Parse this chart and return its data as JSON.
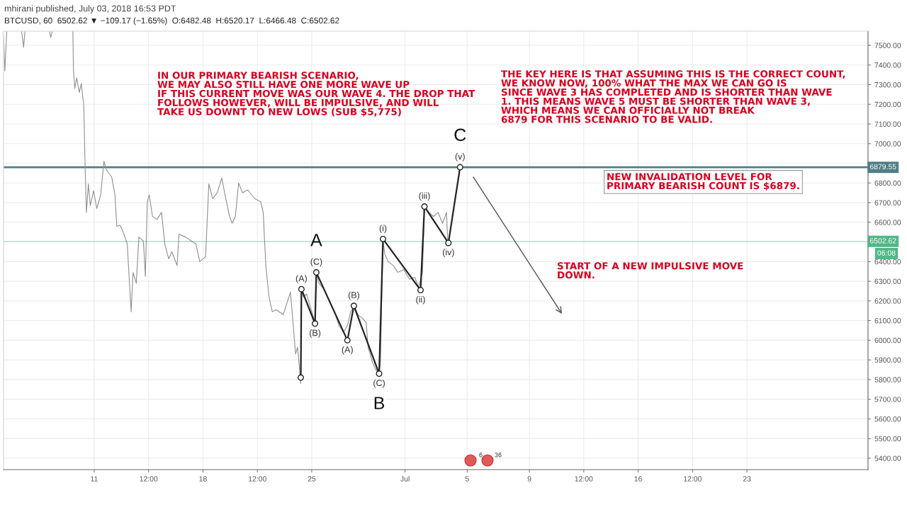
{
  "chart_data": {
    "type": "line",
    "title": "mhirani published, July 03, 2018 16:53 PDT",
    "subtitle": "BTCUSD, 60  6502.62 ▼ −109.17 (−1.65%)  O:6482.48  H:6520.17  L:6466.48  C:6502.62",
    "x": [
      "2018-06-05T04:00",
      "2018-06-05T06:00",
      "2018-06-05T09:00",
      "2018-06-05T20:00",
      "2018-06-06T08:00",
      "2018-06-06T11:00",
      "2018-06-06T13:00",
      "2018-06-07T08:00",
      "2018-06-08T03:00",
      "2018-06-08T05:00",
      "2018-06-08T07:00",
      "2018-06-09T00:00",
      "2018-06-09T15:00",
      "2018-06-09T16:00",
      "2018-06-09T18:00",
      "2018-06-09T21:00",
      "2018-06-10T01:00",
      "2018-06-10T04:00",
      "2018-06-10T08:00",
      "2018-06-10T10:00",
      "2018-06-10T12:00",
      "2018-06-10T15:00",
      "2018-06-10T18:00",
      "2018-06-10T23:00",
      "2018-06-11T04:00",
      "2018-06-11T10:00",
      "2018-06-11T15:00",
      "2018-06-11T19:00",
      "2018-06-12T03:00",
      "2018-06-12T08:00",
      "2018-06-12T11:00",
      "2018-06-12T16:00",
      "2018-06-12T22:00",
      "2018-06-13T03:00",
      "2018-06-13T09:00",
      "2018-06-13T12:00",
      "2018-06-13T17:00",
      "2018-06-13T21:00",
      "2018-06-14T04:00",
      "2018-06-14T07:00",
      "2018-06-14T10:00",
      "2018-06-14T13:00",
      "2018-06-14T18:00",
      "2018-06-15T01:00",
      "2018-06-15T08:00",
      "2018-06-15T13:00",
      "2018-06-15T19:00",
      "2018-06-16T00:00",
      "2018-06-16T08:00",
      "2018-06-16T11:00",
      "2018-06-16T21:00",
      "2018-06-17T06:00",
      "2018-06-17T13:00",
      "2018-06-17T19:00",
      "2018-06-18T04:00",
      "2018-06-18T09:00",
      "2018-06-18T15:00",
      "2018-06-18T22:00",
      "2018-06-19T05:00",
      "2018-06-19T10:00",
      "2018-06-19T17:00",
      "2018-06-19T21:00",
      "2018-06-20T02:00",
      "2018-06-20T07:00",
      "2018-06-20T13:00",
      "2018-06-20T21:00",
      "2018-06-21T08:00",
      "2018-06-21T17:00",
      "2018-06-21T21:00",
      "2018-06-22T01:00",
      "2018-06-22T06:00",
      "2018-06-22T11:00",
      "2018-06-22T17:00",
      "2018-06-23T04:00",
      "2018-06-23T15:00",
      "2018-06-23T18:00",
      "2018-06-23T23:00",
      "2018-06-24T02:00",
      "2018-06-24T06:00",
      "2018-06-24T07:00",
      "2018-06-24T08:00",
      "2018-06-24T11:00",
      "2018-06-24T16:00",
      "2018-06-25T00:00",
      "2018-06-25T05:00",
      "2018-06-25T07:00",
      "2018-06-25T11:00",
      "2018-06-25T20:00",
      "2018-06-26T03:00",
      "2018-06-26T11:00",
      "2018-06-26T18:00",
      "2018-06-27T01:00",
      "2018-06-27T07:00",
      "2018-06-27T12:00",
      "2018-06-27T18:00",
      "2018-06-27T23:00",
      "2018-06-28T07:00",
      "2018-06-28T12:00",
      "2018-06-28T15:00",
      "2018-06-28T21:00",
      "2018-06-29T02:00",
      "2018-06-29T07:00",
      "2018-06-29T10:00",
      "2018-06-29T12:00",
      "2018-06-29T14:00",
      "2018-06-29T17:00",
      "2018-06-29T22:00",
      "2018-06-30T06:00",
      "2018-06-30T13:00",
      "2018-06-30T22:00",
      "2018-07-01T07:00",
      "2018-07-01T15:00",
      "2018-07-01T21:00",
      "2018-07-02T03:00",
      "2018-07-02T06:00",
      "2018-07-02T13:00",
      "2018-07-02T20:00",
      "2018-07-03T03:00",
      "2018-07-03T10:00",
      "2018-07-03T16:00",
      "2018-07-03T18:00"
    ],
    "series": [
      {
        "color": "#8f8f8f",
        "values": [
          7550,
          7370,
          7570,
          null,
          7570,
          7490,
          7570,
          null,
          7570,
          7540,
          7570,
          null,
          7570,
          7370,
          7280,
          7335,
          7260,
          7305,
          7190,
          6880,
          6650,
          6795,
          6685,
          6760,
          6670,
          6740,
          6910,
          6865,
          6830,
          6740,
          6580,
          6585,
          6540,
          6490,
          6145,
          6345,
          6290,
          6525,
          6505,
          6325,
          6705,
          6740,
          6630,
          6615,
          6650,
          6490,
          6415,
          6450,
          6380,
          6540,
          6525,
          6505,
          6490,
          6400,
          6425,
          6795,
          6720,
          6750,
          6825,
          6740,
          6630,
          6595,
          6630,
          6800,
          6750,
          6765,
          6720,
          6705,
          6650,
          6380,
          6220,
          6145,
          6155,
          6130,
          6245,
          6130,
          5930,
          5965,
          5820,
          5780,
          6270,
          6220,
          6235,
          6145,
          6090,
          6345,
          6290,
          6255,
          6200,
          6145,
          6075,
          6040,
          6075,
          6145,
          6175,
          6130,
          6110,
          6090,
          5965,
          5895,
          5855,
          5830,
          5875,
          6220,
          6505,
          6435,
          6400,
          6380,
          6345,
          6360,
          6310,
          6320,
          6270,
          6345,
          6680,
          6650,
          6630,
          6650,
          6595,
          6650,
          6505
        ]
      },
      {
        "color": "#222222",
        "marker": "circle",
        "x": [
          "2018-06-24T07:00",
          "2018-06-24T08:00",
          "2018-06-25T05:00",
          "2018-06-25T07:00",
          "2018-06-27T07:00",
          "2018-06-27T17:00",
          "2018-06-29T08:00",
          "2018-06-29T14:00",
          "2018-07-02T00:00",
          "2018-07-02T06:00",
          "2018-07-03T19:00",
          "2018-07-04T13:00"
        ],
        "values": [
          5810,
          6260,
          6085,
          6345,
          6000,
          6175,
          5830,
          6515,
          6255,
          6680,
          6495,
          6880
        ]
      }
    ],
    "xlim": [
      "2018-06-05T04:00",
      "2018-07-30T19:00"
    ],
    "xticks": [
      {
        "value": "2018-06-11",
        "label": "11"
      },
      {
        "value": "2018-06-14T12:00",
        "label": "12:00"
      },
      {
        "value": "2018-06-18",
        "label": "18"
      },
      {
        "value": "2018-06-21T12:00",
        "label": "12:00"
      },
      {
        "value": "2018-06-25",
        "label": "25"
      },
      {
        "value": "2018-07-01",
        "label": "Jul"
      },
      {
        "value": "2018-07-05",
        "label": "5"
      },
      {
        "value": "2018-07-09",
        "label": "9"
      },
      {
        "value": "2018-07-12T12:00",
        "label": "12:00"
      },
      {
        "value": "2018-07-16",
        "label": "16"
      },
      {
        "value": "2018-07-19T12:00",
        "label": "12:00"
      },
      {
        "value": "2018-07-23",
        "label": "23"
      }
    ],
    "ylim": [
      5342,
      7572
    ],
    "yticks": [
      {
        "value": 5400,
        "label": "5400.00"
      },
      {
        "value": 5500,
        "label": "5500.00"
      },
      {
        "value": 5600,
        "label": "5600.00"
      },
      {
        "value": 5700,
        "label": "5700.00"
      },
      {
        "value": 5800,
        "label": "5800.00"
      },
      {
        "value": 5900,
        "label": "5900.00"
      },
      {
        "value": 6000,
        "label": "6000.00"
      },
      {
        "value": 6100,
        "label": "6100.00"
      },
      {
        "value": 6200,
        "label": "6200.00"
      },
      {
        "value": 6300,
        "label": "6300.00"
      },
      {
        "value": 6400,
        "label": "6400.00"
      },
      {
        "value": 6500,
        "label": null
      },
      {
        "value": 6600,
        "label": "6600.00"
      },
      {
        "value": 6700,
        "label": "6700.00"
      },
      {
        "value": 6800,
        "label": "6800.00"
      },
      {
        "value": 6900,
        "label": null
      },
      {
        "value": 7000,
        "label": "7000.00"
      },
      {
        "value": 7100,
        "label": "7100.00"
      },
      {
        "value": 7200,
        "label": "7200.00"
      },
      {
        "value": 7300,
        "label": "7300.00"
      },
      {
        "value": 7400,
        "label": "7400.00"
      },
      {
        "value": 7500,
        "label": "7500.00"
      }
    ],
    "grid": true,
    "ref_lines": [
      {
        "axis": "y",
        "value": 6879.55,
        "label": "6879.55",
        "color": "#4f7f86"
      },
      {
        "axis": "y",
        "value": 6502.62,
        "label": "6502.62",
        "color": "#52b788"
      }
    ],
    "annotations": [
      "IN OUR PRIMARY BEARISH SCENARIO,\nWE MAY ALSO STILL HAVE ONE MORE WAVE UP\nIF THIS CURRENT MOVE WAS OUR WAVE 4. THE DROP THAT\nFOLLOWS HOWEVER, WILL BE IMPULSIVE, AND WILL\nTAKE US DOWNT TO NEW LOWS (SUB $5,775)",
      "THE KEY HERE IS THAT ASSUMING THIS IS THE CORRECT COUNT,\nWE KNOW NOW, 100% WHAT THE MAX WE CAN GO IS\nSINCE WAVE 3 HAS COMPLETED AND IS SHORTER THAN WAVE\n1. THIS MEANS WAVE 5 MUST BE SHORTER THAN WAVE 3,\nWHICH MEANS WE CAN OFFICIALLY NOT BREAK\n6879 FOR THIS SCENARIO TO BE VALID.",
      "NEW INVALIDATION LEVEL FOR\nPRIMARY BEARISH COUNT IS $6879.",
      "START OF A NEW IMPULSIVE MOVE\nDOWN.",
      "06:08",
      "6",
      "36",
      {
        "text": "(A)",
        "x": "2018-06-24T08:00",
        "y": 6260
      },
      {
        "text": "(B)",
        "x": "2018-06-25T05:00",
        "y": 6085
      },
      {
        "text": "(C)",
        "x": "2018-06-25T07:00",
        "y": 6345
      },
      {
        "text": "A",
        "x": "2018-06-25T07:00",
        "y": 6345
      },
      {
        "text": "(A)",
        "x": "2018-06-27T07:00",
        "y": 6000
      },
      {
        "text": "(B)",
        "x": "2018-06-27T17:00",
        "y": 6175
      },
      {
        "text": "(C)",
        "x": "2018-06-29T08:00",
        "y": 5830
      },
      {
        "text": "B",
        "x": "2018-06-29T08:00",
        "y": 5830
      },
      {
        "text": "(i)",
        "x": "2018-06-29T14:00",
        "y": 6515
      },
      {
        "text": "(ii)",
        "x": "2018-07-02T00:00",
        "y": 6255
      },
      {
        "text": "(iii)",
        "x": "2018-07-02T06:00",
        "y": 6680
      },
      {
        "text": "(iv)",
        "x": "2018-07-03T19:00",
        "y": 6495
      },
      {
        "text": "(v)",
        "x": "2018-07-04T13:00",
        "y": 6880
      },
      {
        "text": "C",
        "x": "2018-07-04T13:00",
        "y": 6880
      }
    ]
  }
}
